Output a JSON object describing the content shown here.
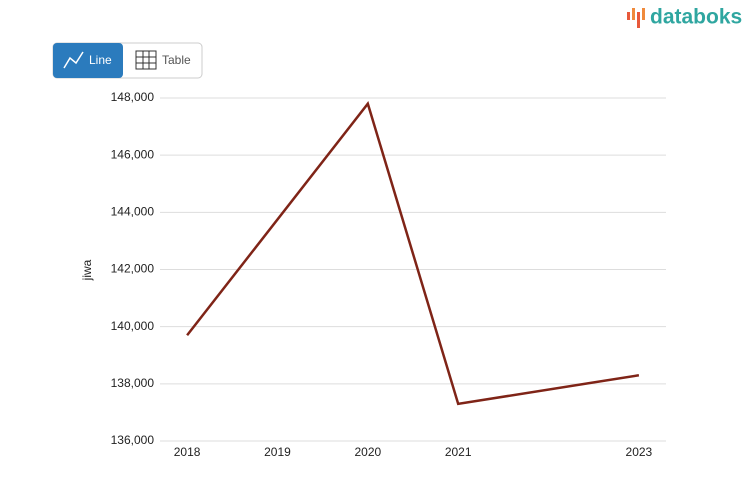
{
  "brand": "databoks",
  "buttons": {
    "line": "Line",
    "table": "Table"
  },
  "chart_data": {
    "type": "line",
    "y_label": "jiwa",
    "x": [
      2018,
      2020,
      2021,
      2023
    ],
    "series": [
      {
        "color": "#7f2417",
        "values": [
          139700,
          147800,
          137300,
          138300
        ]
      }
    ],
    "xlim": [
      2017.7,
      2023.3
    ],
    "xticks": [
      2018,
      2019,
      2020,
      2021,
      2023
    ],
    "ylim": [
      136000,
      148000
    ],
    "yticks": [
      {
        "value": 136000,
        "label": "136,000"
      },
      {
        "value": 138000,
        "label": "138,000"
      },
      {
        "value": 140000,
        "label": "140,000"
      },
      {
        "value": 142000,
        "label": "142,000"
      },
      {
        "value": 144000,
        "label": "144,000"
      },
      {
        "value": 146000,
        "label": "146,000"
      },
      {
        "value": 148000,
        "label": "148,000"
      }
    ],
    "grid": true
  }
}
